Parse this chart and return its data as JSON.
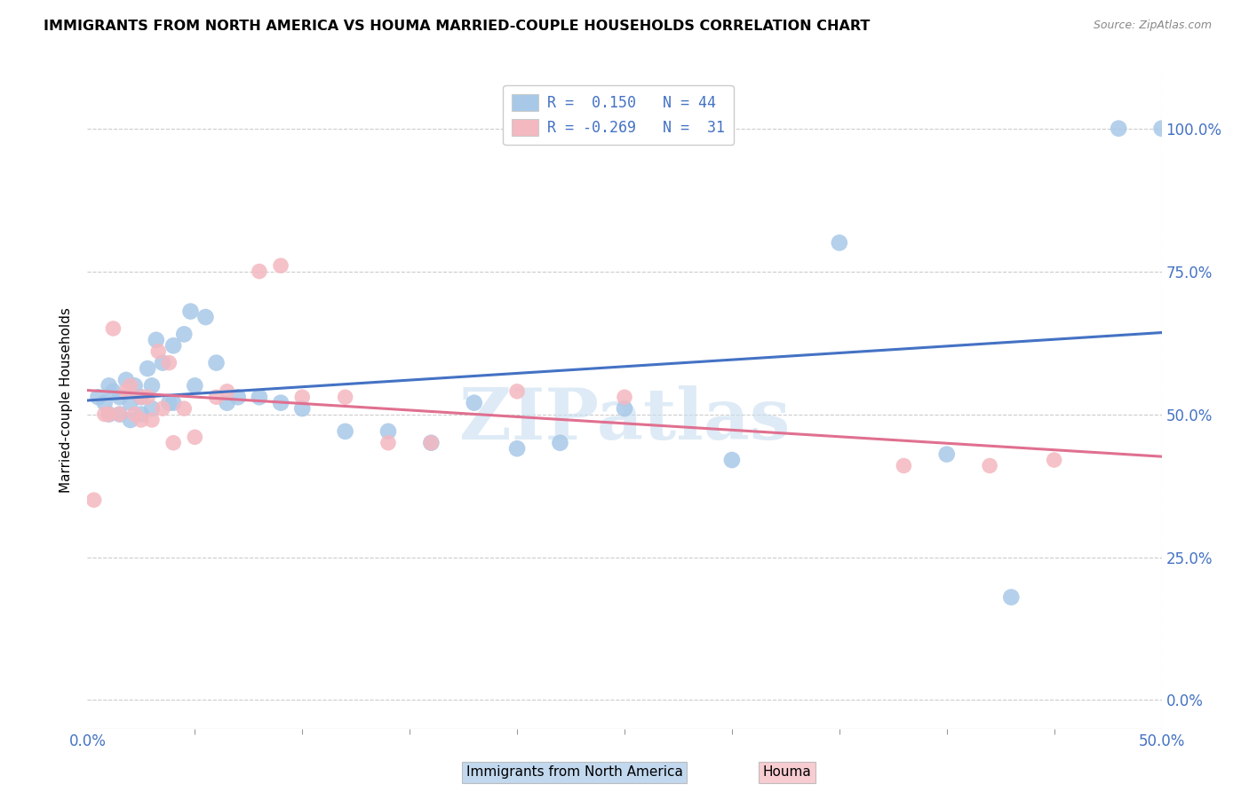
{
  "title": "IMMIGRANTS FROM NORTH AMERICA VS HOUMA MARRIED-COUPLE HOUSEHOLDS CORRELATION CHART",
  "source": "Source: ZipAtlas.com",
  "ylabel": "Married-couple Households",
  "x_range": [
    0.0,
    0.5
  ],
  "y_range": [
    -0.05,
    1.1
  ],
  "legend_r1": "R =  0.150   N = 44",
  "legend_r2": "R = -0.269   N =  31",
  "blue_color": "#a8c8e8",
  "pink_color": "#f4b8c0",
  "blue_line_color": "#4472c4",
  "pink_line_color": "#e07090",
  "watermark_color": "#c8dff0",
  "blue_points_x": [
    0.005,
    0.008,
    0.01,
    0.01,
    0.012,
    0.015,
    0.015,
    0.018,
    0.02,
    0.02,
    0.022,
    0.025,
    0.025,
    0.028,
    0.03,
    0.03,
    0.032,
    0.035,
    0.038,
    0.04,
    0.04,
    0.045,
    0.048,
    0.05,
    0.055,
    0.06,
    0.065,
    0.07,
    0.08,
    0.09,
    0.1,
    0.12,
    0.14,
    0.16,
    0.18,
    0.2,
    0.22,
    0.25,
    0.3,
    0.35,
    0.4,
    0.43,
    0.48,
    0.5
  ],
  "blue_points_y": [
    0.53,
    0.52,
    0.5,
    0.55,
    0.54,
    0.53,
    0.5,
    0.56,
    0.52,
    0.49,
    0.55,
    0.53,
    0.5,
    0.58,
    0.55,
    0.51,
    0.63,
    0.59,
    0.52,
    0.62,
    0.52,
    0.64,
    0.68,
    0.55,
    0.67,
    0.59,
    0.52,
    0.53,
    0.53,
    0.52,
    0.51,
    0.47,
    0.47,
    0.45,
    0.52,
    0.44,
    0.45,
    0.51,
    0.42,
    0.8,
    0.43,
    0.18,
    1.0,
    1.0
  ],
  "pink_points_x": [
    0.003,
    0.008,
    0.01,
    0.012,
    0.015,
    0.018,
    0.02,
    0.022,
    0.025,
    0.025,
    0.028,
    0.03,
    0.033,
    0.035,
    0.038,
    0.04,
    0.045,
    0.05,
    0.06,
    0.065,
    0.08,
    0.09,
    0.1,
    0.12,
    0.14,
    0.16,
    0.2,
    0.25,
    0.38,
    0.42,
    0.45
  ],
  "pink_points_y": [
    0.35,
    0.5,
    0.5,
    0.65,
    0.5,
    0.54,
    0.55,
    0.5,
    0.53,
    0.49,
    0.53,
    0.49,
    0.61,
    0.51,
    0.59,
    0.45,
    0.51,
    0.46,
    0.53,
    0.54,
    0.75,
    0.76,
    0.53,
    0.53,
    0.45,
    0.45,
    0.54,
    0.53,
    0.41,
    0.41,
    0.42
  ],
  "blue_scatter_size": 180,
  "pink_scatter_size": 160
}
